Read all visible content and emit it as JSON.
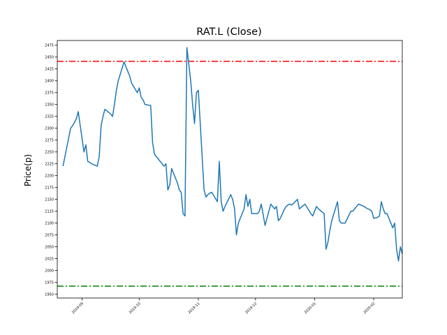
{
  "chart_data": {
    "type": "line",
    "title": "RAT.L (Close)",
    "xlabel": "",
    "ylabel": "Price(p)",
    "grid": false,
    "x_tick_labels": [
      "2019-09",
      "2019-10",
      "2019-11",
      "2019-12",
      "2020-01",
      "2020-02"
    ],
    "x_tick_dates": [
      "2019-09-01",
      "2019-10-01",
      "2019-11-01",
      "2019-12-01",
      "2020-01-01",
      "2020-02-01"
    ],
    "xlim": [
      "2019-08-19",
      "2020-02-16"
    ],
    "ylim": [
      1942,
      2485
    ],
    "y_ticks": [
      1950,
      1975,
      2000,
      2025,
      2050,
      2075,
      2100,
      2125,
      2150,
      2175,
      2200,
      2225,
      2250,
      2275,
      2300,
      2325,
      2350,
      2375,
      2400,
      2425,
      2450,
      2475
    ],
    "hlines": [
      {
        "value": 2441,
        "color": "#ff0000",
        "style": "dashdot"
      },
      {
        "value": 1967,
        "color": "#008000",
        "style": "dashdot"
      }
    ],
    "series": [
      {
        "color": "#1f77b4",
        "points": [
          [
            "2019-08-22",
            2220
          ],
          [
            "2019-08-23",
            2240
          ],
          [
            "2019-08-26",
            2300
          ],
          [
            "2019-08-27",
            2305
          ],
          [
            "2019-08-28",
            2312
          ],
          [
            "2019-08-29",
            2320
          ],
          [
            "2019-08-30",
            2335
          ],
          [
            "2019-09-02",
            2250
          ],
          [
            "2019-09-03",
            2265
          ],
          [
            "2019-09-04",
            2230
          ],
          [
            "2019-09-05",
            2228
          ],
          [
            "2019-09-06",
            2225
          ],
          [
            "2019-09-09",
            2220
          ],
          [
            "2019-09-10",
            2240
          ],
          [
            "2019-09-11",
            2305
          ],
          [
            "2019-09-12",
            2325
          ],
          [
            "2019-09-13",
            2340
          ],
          [
            "2019-09-16",
            2330
          ],
          [
            "2019-09-17",
            2325
          ],
          [
            "2019-09-18",
            2350
          ],
          [
            "2019-09-19",
            2380
          ],
          [
            "2019-09-20",
            2400
          ],
          [
            "2019-09-23",
            2440
          ],
          [
            "2019-09-24",
            2430
          ],
          [
            "2019-09-25",
            2420
          ],
          [
            "2019-09-26",
            2410
          ],
          [
            "2019-09-27",
            2395
          ],
          [
            "2019-09-30",
            2375
          ],
          [
            "2019-10-01",
            2385
          ],
          [
            "2019-10-02",
            2365
          ],
          [
            "2019-10-03",
            2360
          ],
          [
            "2019-10-04",
            2350
          ],
          [
            "2019-10-07",
            2348
          ],
          [
            "2019-10-08",
            2270
          ],
          [
            "2019-10-09",
            2245
          ],
          [
            "2019-10-10",
            2240
          ],
          [
            "2019-10-11",
            2235
          ],
          [
            "2019-10-14",
            2220
          ],
          [
            "2019-10-15",
            2225
          ],
          [
            "2019-10-16",
            2170
          ],
          [
            "2019-10-17",
            2180
          ],
          [
            "2019-10-18",
            2215
          ],
          [
            "2019-10-21",
            2185
          ],
          [
            "2019-10-22",
            2170
          ],
          [
            "2019-10-23",
            2165
          ],
          [
            "2019-10-24",
            2120
          ],
          [
            "2019-10-25",
            2115
          ],
          [
            "2019-10-26",
            2470
          ],
          [
            "2019-10-28",
            2400
          ],
          [
            "2019-10-29",
            2350
          ],
          [
            "2019-10-30",
            2310
          ],
          [
            "2019-10-31",
            2375
          ],
          [
            "2019-11-01",
            2380
          ],
          [
            "2019-11-04",
            2170
          ],
          [
            "2019-11-05",
            2155
          ],
          [
            "2019-11-06",
            2160
          ],
          [
            "2019-11-07",
            2163
          ],
          [
            "2019-11-08",
            2165
          ],
          [
            "2019-11-11",
            2145
          ],
          [
            "2019-11-12",
            2230
          ],
          [
            "2019-11-13",
            2145
          ],
          [
            "2019-11-14",
            2125
          ],
          [
            "2019-11-15",
            2135
          ],
          [
            "2019-11-18",
            2160
          ],
          [
            "2019-11-19",
            2150
          ],
          [
            "2019-11-20",
            2130
          ],
          [
            "2019-11-21",
            2075
          ],
          [
            "2019-11-22",
            2100
          ],
          [
            "2019-11-25",
            2130
          ],
          [
            "2019-11-26",
            2160
          ],
          [
            "2019-11-27",
            2135
          ],
          [
            "2019-11-28",
            2150
          ],
          [
            "2019-11-29",
            2120
          ],
          [
            "2019-12-02",
            2120
          ],
          [
            "2019-12-03",
            2125
          ],
          [
            "2019-12-04",
            2140
          ],
          [
            "2019-12-05",
            2118
          ],
          [
            "2019-12-06",
            2095
          ],
          [
            "2019-12-09",
            2140
          ],
          [
            "2019-12-10",
            2135
          ],
          [
            "2019-12-11",
            2130
          ],
          [
            "2019-12-12",
            2135
          ],
          [
            "2019-12-13",
            2105
          ],
          [
            "2019-12-14",
            2110
          ],
          [
            "2019-12-16",
            2128
          ],
          [
            "2019-12-17",
            2135
          ],
          [
            "2019-12-18",
            2138
          ],
          [
            "2019-12-19",
            2140
          ],
          [
            "2019-12-20",
            2138
          ],
          [
            "2019-12-23",
            2150
          ],
          [
            "2019-12-24",
            2130
          ],
          [
            "2019-12-27",
            2140
          ],
          [
            "2019-12-30",
            2120
          ],
          [
            "2019-12-31",
            2115
          ],
          [
            "2020-01-02",
            2135
          ],
          [
            "2020-01-03",
            2130
          ],
          [
            "2020-01-06",
            2120
          ],
          [
            "2020-01-07",
            2045
          ],
          [
            "2020-01-08",
            2060
          ],
          [
            "2020-01-09",
            2085
          ],
          [
            "2020-01-10",
            2105
          ],
          [
            "2020-01-13",
            2145
          ],
          [
            "2020-01-14",
            2105
          ],
          [
            "2020-01-15",
            2100
          ],
          [
            "2020-01-16",
            2100
          ],
          [
            "2020-01-17",
            2100
          ],
          [
            "2020-01-20",
            2125
          ],
          [
            "2020-01-21",
            2125
          ],
          [
            "2020-01-22",
            2130
          ],
          [
            "2020-01-23",
            2135
          ],
          [
            "2020-01-24",
            2140
          ],
          [
            "2020-01-27",
            2135
          ],
          [
            "2020-01-28",
            2132
          ],
          [
            "2020-01-29",
            2130
          ],
          [
            "2020-01-30",
            2128
          ],
          [
            "2020-01-31",
            2125
          ],
          [
            "2020-02-01",
            2110
          ],
          [
            "2020-02-03",
            2112
          ],
          [
            "2020-02-04",
            2115
          ],
          [
            "2020-02-05",
            2145
          ],
          [
            "2020-02-06",
            2130
          ],
          [
            "2020-02-07",
            2120
          ],
          [
            "2020-02-08",
            2120
          ],
          [
            "2020-02-10",
            2100
          ],
          [
            "2020-02-11",
            2090
          ],
          [
            "2020-02-12",
            2100
          ],
          [
            "2020-02-13",
            2045
          ],
          [
            "2020-02-14",
            2020
          ],
          [
            "2020-02-15",
            2050
          ],
          [
            "2020-02-16",
            2035
          ]
        ]
      }
    ]
  }
}
